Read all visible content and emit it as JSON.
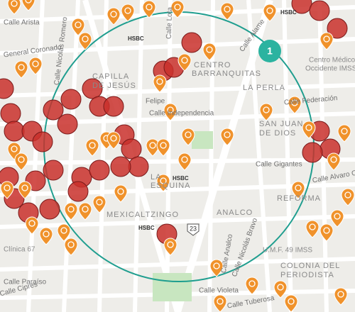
{
  "map": {
    "streets": [
      "Calle Arista",
      "General Coronado",
      "Calle Nicolás Romero",
      "Calle Lota",
      "Calle Alame",
      "Calle Federación",
      "Calle Independencia",
      "Felipe",
      "Calle Gigantes",
      "Calle Alvaro Obregón",
      "Calle Analco",
      "Calle Nicolás Bravo",
      "Calle Tuberosa",
      "Calle Violeta",
      "Calle Paraíso",
      "Calle Cipres"
    ],
    "districts": [
      "CAPILLA",
      "DE JESÚS",
      "CENTRO",
      "BARRANQUITAS",
      "LA PERLA",
      "SAN JUAN",
      "DE DIOS",
      "LA",
      "ESQUINA",
      "MEXICALTZINGO",
      "ANALCO",
      "REFORMA",
      "COLONIA DEL",
      "PERIODISTA"
    ],
    "places": [
      "Centro Médico",
      "Occidente IMSS",
      "U.M.F. 49 IMSS",
      "Clínica 67"
    ],
    "banks": [
      "HSBC",
      "HSBC",
      "HSBC",
      "HSBC"
    ],
    "cluster_count": "1",
    "route_shield": "23"
  }
}
